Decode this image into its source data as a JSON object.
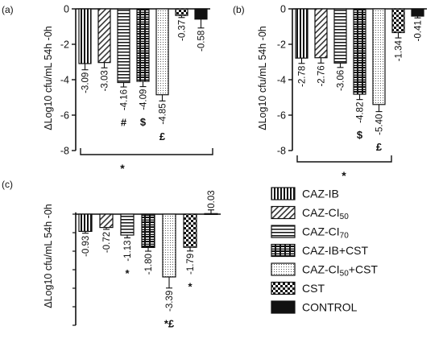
{
  "chart_data": [
    {
      "panel_label": "(a)",
      "type": "bar",
      "ylabel": "ΔLog10 cfu/mL 54h -0h",
      "ylim": [
        -8,
        0
      ],
      "yticks": [
        "0",
        "-2",
        "-4",
        "-6",
        "-8"
      ],
      "categories": [
        "CAZ-IB",
        "CAZ-CI50",
        "CAZ-CI70",
        "CAZ-IB+CST",
        "CAZ-CI50+CST",
        "CST",
        "CONTROL"
      ],
      "values": [
        -3.09,
        -3.03,
        -4.16,
        -4.09,
        -4.85,
        -0.37,
        -0.58
      ],
      "value_labels": [
        "-3.09",
        "-3.03",
        "-4.16",
        "-4.09",
        "-4.85",
        "-0.37",
        "-0.58"
      ],
      "errors": [
        0.35,
        0.3,
        0.25,
        0.3,
        0.35,
        0.12,
        0.5
      ],
      "marks": [
        "",
        "",
        "#",
        "$",
        "£",
        "",
        ""
      ],
      "significance": "*"
    },
    {
      "panel_label": "(b)",
      "type": "bar",
      "ylabel": "ΔLog10 cfu/mL 54h -0h",
      "ylim": [
        -8,
        0
      ],
      "yticks": [
        "0",
        "-2",
        "-4",
        "-6",
        "-8"
      ],
      "categories": [
        "CAZ-IB",
        "CAZ-CI50",
        "CAZ-CI70",
        "CAZ-IB+CST",
        "CAZ-CI50+CST",
        "CST",
        "CONTROL"
      ],
      "values": [
        -2.78,
        -2.76,
        -3.06,
        -4.82,
        -5.4,
        -1.34,
        -0.41
      ],
      "value_labels": [
        "-2.78",
        "-2.76",
        "-3.06",
        "-4.82",
        "-5.40",
        "-1.34",
        "-0.41"
      ],
      "errors": [
        0.3,
        0.3,
        0.25,
        0.3,
        0.4,
        0.3,
        0.1
      ],
      "marks": [
        "",
        "",
        "",
        "$",
        "£",
        "",
        ""
      ],
      "significance": "*"
    },
    {
      "panel_label": "(c)",
      "type": "bar",
      "ylabel": "ΔLog10 cfu/mL 54h -0h",
      "ylim": [
        -6,
        1
      ],
      "yticks": [],
      "categories": [
        "CAZ-IB",
        "CAZ-CI50",
        "CAZ-CI70",
        "CAZ-IB+CST",
        "CAZ-CI50+CST",
        "CST",
        "CONTROL"
      ],
      "values": [
        -0.93,
        -0.72,
        -1.13,
        -1.8,
        -3.39,
        -1.79,
        0.03
      ],
      "value_labels": [
        "-0.93",
        "-0.72",
        "-1.13",
        "-1.80",
        "-3.39",
        "-1.79",
        "0.03"
      ],
      "errors": [
        0.1,
        0.1,
        0.15,
        0.2,
        0.6,
        0.2,
        0.2
      ],
      "marks": [
        "",
        "",
        "*",
        "",
        "*£",
        "*",
        ""
      ],
      "significance": ""
    }
  ],
  "legend": [
    {
      "label": "CAZ-IB",
      "sub": "",
      "pattern": "vstripe"
    },
    {
      "label": "CAZ-CI",
      "sub": "50",
      "pattern": "diag"
    },
    {
      "label": "CAZ-CI",
      "sub": "70",
      "pattern": "hstripe"
    },
    {
      "label": "CAZ-IB+CST",
      "sub": "",
      "pattern": "brick"
    },
    {
      "label": "CAZ-CI",
      "sub": "50",
      "suffix": "+CST",
      "pattern": "dots"
    },
    {
      "label": "CST",
      "sub": "",
      "pattern": "checker"
    },
    {
      "label": "CONTROL",
      "sub": "",
      "pattern": "solid"
    }
  ]
}
